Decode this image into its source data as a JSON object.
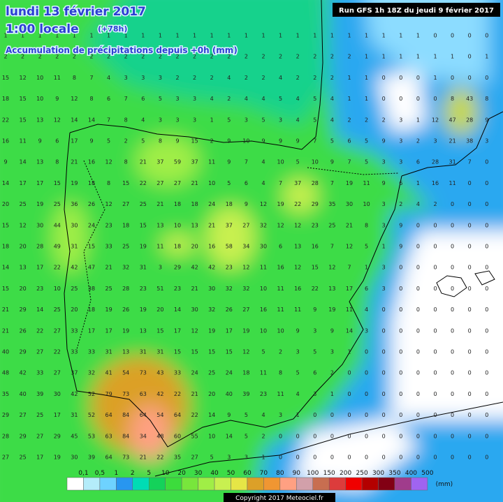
{
  "header": {
    "title": "lundi 13 février 2017",
    "time": "1:00 locale",
    "offset": "(+78h)",
    "subtitle": "Accumulation de précipitations depuis +0h (mm)",
    "run": "Run GFS 1h 18Z du jeudi 9 février 2017"
  },
  "legend": {
    "labels": [
      "0,1",
      "0,5",
      "1",
      "2",
      "5",
      "10",
      "20",
      "30",
      "40",
      "50",
      "60",
      "70",
      "80",
      "90",
      "100",
      "150",
      "200",
      "250",
      "300",
      "350",
      "400",
      "500"
    ],
    "colors": [
      "#ffffff",
      "#b4ecfa",
      "#6ed2ff",
      "#2896f0",
      "#00dcb4",
      "#14d25a",
      "#3cdc3c",
      "#78e63c",
      "#a0ee46",
      "#c8f050",
      "#e6e646",
      "#dca028",
      "#f09632",
      "#ffa082",
      "#d2a0aa",
      "#c86e50",
      "#dc3c3c",
      "#f00000",
      "#b40000",
      "#820014",
      "#a03c8c",
      "#a064f0"
    ],
    "unit": "(mm)"
  },
  "grid": {
    "rows": [
      [
        1,
        1,
        1,
        1,
        1,
        1,
        1,
        1,
        1,
        1,
        1,
        1,
        1,
        1,
        1,
        1,
        1,
        1,
        1,
        1,
        1,
        1,
        1,
        1,
        1,
        0,
        0,
        0,
        0
      ],
      [
        2,
        2,
        2,
        2,
        2,
        2,
        2,
        2,
        2,
        2,
        2,
        2,
        2,
        2,
        2,
        2,
        2,
        2,
        2,
        2,
        2,
        1,
        1,
        1,
        1,
        1,
        1,
        0,
        1
      ],
      [
        15,
        12,
        10,
        11,
        8,
        7,
        4,
        3,
        3,
        3,
        2,
        2,
        2,
        4,
        2,
        2,
        4,
        2,
        2,
        2,
        1,
        1,
        0,
        0,
        0,
        1,
        0,
        0,
        0
      ],
      [
        18,
        15,
        10,
        9,
        12,
        8,
        6,
        7,
        6,
        5,
        3,
        3,
        4,
        2,
        4,
        4,
        5,
        4,
        5,
        4,
        1,
        1,
        0,
        0,
        0,
        0,
        8,
        43,
        8
      ],
      [
        22,
        15,
        13,
        12,
        14,
        14,
        7,
        8,
        4,
        3,
        3,
        3,
        1,
        5,
        3,
        5,
        3,
        4,
        5,
        4,
        2,
        2,
        2,
        3,
        1,
        12,
        47,
        28,
        9
      ],
      [
        16,
        11,
        9,
        6,
        17,
        9,
        5,
        2,
        5,
        8,
        9,
        15,
        2,
        9,
        10,
        9,
        9,
        9,
        7,
        5,
        6,
        5,
        9,
        3,
        2,
        3,
        21,
        38,
        3
      ],
      [
        9,
        14,
        13,
        8,
        21,
        16,
        12,
        8,
        21,
        37,
        59,
        37,
        11,
        9,
        7,
        4,
        10,
        5,
        10,
        9,
        7,
        5,
        3,
        3,
        6,
        28,
        31,
        7,
        0
      ],
      [
        14,
        17,
        17,
        15,
        19,
        18,
        8,
        15,
        22,
        27,
        27,
        21,
        10,
        5,
        6,
        4,
        7,
        37,
        28,
        7,
        19,
        11,
        9,
        6,
        1,
        16,
        11,
        0,
        0
      ],
      [
        20,
        25,
        19,
        25,
        36,
        26,
        12,
        27,
        25,
        21,
        18,
        18,
        24,
        18,
        9,
        12,
        19,
        22,
        29,
        35,
        30,
        10,
        3,
        2,
        4,
        2,
        0,
        0,
        0
      ],
      [
        15,
        12,
        30,
        44,
        30,
        24,
        23,
        18,
        15,
        13,
        10,
        13,
        21,
        37,
        27,
        32,
        12,
        12,
        23,
        25,
        21,
        8,
        3,
        9,
        0,
        0,
        0,
        0,
        0
      ],
      [
        18,
        20,
        28,
        49,
        31,
        15,
        33,
        25,
        19,
        11,
        18,
        20,
        16,
        58,
        34,
        30,
        6,
        13,
        16,
        7,
        12,
        5,
        1,
        9,
        0,
        0,
        0,
        0,
        0
      ],
      [
        14,
        13,
        17,
        22,
        42,
        47,
        21,
        32,
        31,
        3,
        29,
        42,
        42,
        23,
        12,
        11,
        16,
        12,
        15,
        12,
        7,
        1,
        3,
        0,
        0,
        0,
        0,
        0,
        0
      ],
      [
        15,
        20,
        23,
        10,
        25,
        38,
        25,
        28,
        23,
        51,
        23,
        21,
        30,
        32,
        32,
        10,
        11,
        16,
        22,
        13,
        17,
        6,
        3,
        0,
        0,
        0,
        0,
        0,
        0
      ],
      [
        21,
        29,
        14,
        25,
        20,
        18,
        19,
        26,
        19,
        20,
        14,
        30,
        32,
        26,
        27,
        16,
        11,
        11,
        9,
        19,
        11,
        4,
        0,
        0,
        0,
        0,
        0,
        0,
        0
      ],
      [
        21,
        26,
        22,
        27,
        33,
        17,
        17,
        19,
        13,
        15,
        17,
        12,
        19,
        17,
        19,
        10,
        10,
        9,
        3,
        9,
        14,
        3,
        0,
        0,
        0,
        0,
        0,
        0,
        0
      ],
      [
        40,
        29,
        27,
        22,
        33,
        33,
        31,
        13,
        31,
        31,
        15,
        15,
        15,
        15,
        12,
        5,
        2,
        3,
        5,
        3,
        1,
        0,
        0,
        0,
        0,
        0,
        0,
        0,
        0
      ],
      [
        48,
        42,
        33,
        27,
        37,
        32,
        41,
        54,
        73,
        43,
        33,
        24,
        25,
        24,
        18,
        11,
        8,
        5,
        6,
        2,
        0,
        0,
        0,
        0,
        0,
        0,
        0,
        0,
        0
      ],
      [
        35,
        40,
        39,
        30,
        42,
        52,
        79,
        73,
        63,
        42,
        22,
        21,
        20,
        40,
        39,
        23,
        11,
        4,
        3,
        1,
        0,
        0,
        0,
        0,
        0,
        0,
        0,
        0,
        0
      ],
      [
        29,
        27,
        25,
        17,
        31,
        52,
        64,
        84,
        64,
        54,
        64,
        22,
        14,
        9,
        5,
        4,
        3,
        1,
        0,
        0,
        0,
        0,
        0,
        0,
        0,
        0,
        0,
        0,
        0
      ],
      [
        28,
        29,
        27,
        29,
        45,
        53,
        63,
        84,
        34,
        48,
        60,
        55,
        10,
        14,
        5,
        2,
        0,
        0,
        0,
        0,
        0,
        0,
        0,
        0,
        0,
        0,
        0,
        0,
        0
      ],
      [
        27,
        25,
        17,
        19,
        30,
        39,
        64,
        73,
        21,
        22,
        35,
        27,
        5,
        3,
        3,
        1,
        0,
        0,
        0,
        0,
        0,
        0,
        0,
        0,
        0,
        0,
        0,
        0,
        0
      ]
    ]
  },
  "footer": {
    "copyright": "Copyright 2017 Meteociel.fr"
  }
}
